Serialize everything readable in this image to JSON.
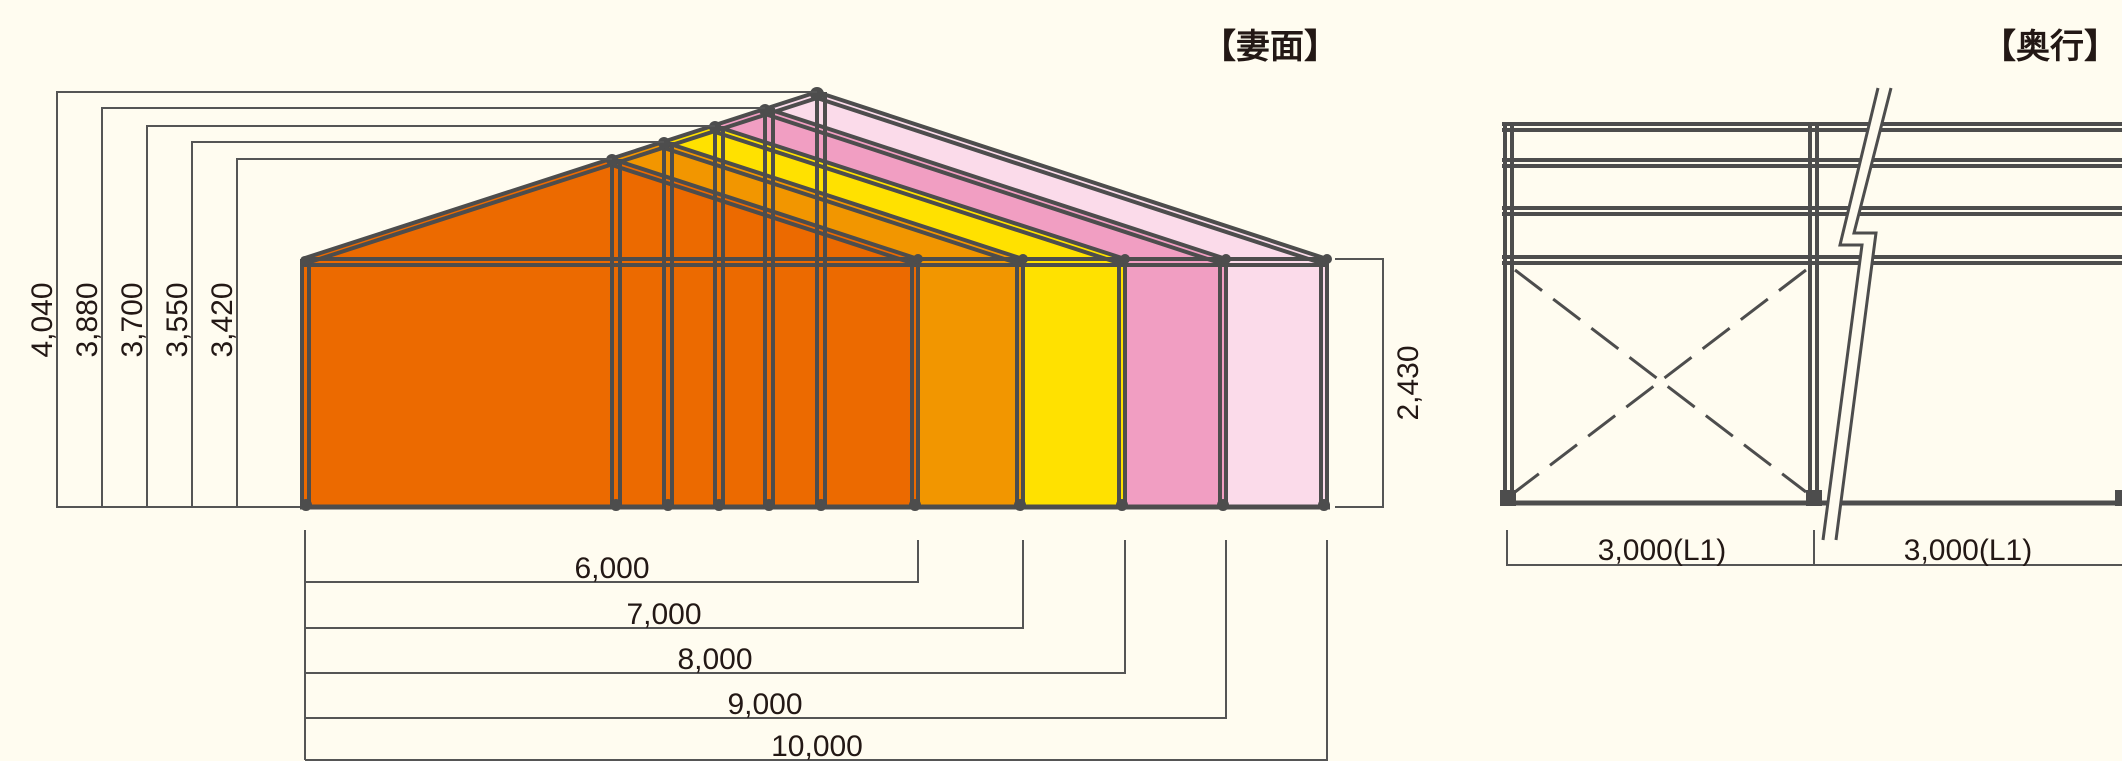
{
  "gable_view": {
    "title": "【妻面】",
    "height_labels": [
      "4,040",
      "3,880",
      "3,700",
      "3,550",
      "3,420"
    ],
    "eave_height_label": "2,430",
    "width_labels": [
      "6,000",
      "7,000",
      "8,000",
      "9,000",
      "10,000"
    ],
    "fill_colors": [
      "#ec6a00",
      "#f29600",
      "#ffe100",
      "#f19ec2",
      "#fbdbea"
    ],
    "frame_color": "#4d4d4d"
  },
  "depth_view": {
    "title": "【奥行】",
    "bay_labels": [
      "3,000(L1)",
      "3,000(L1)"
    ]
  }
}
